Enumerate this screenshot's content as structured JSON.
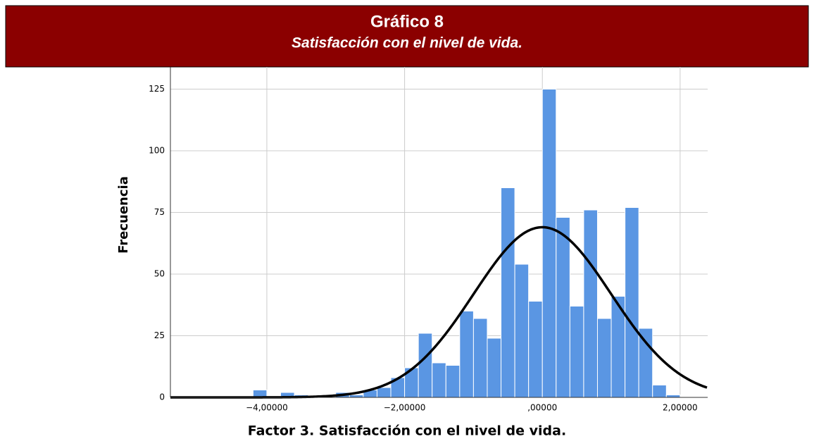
{
  "header": {
    "title": "Gráfico 8",
    "subtitle": "Satisfacción con el nivel de vida."
  },
  "chart_data": {
    "type": "histogram",
    "xlabel": "Factor 3. Satisfacción con el nivel de vida.",
    "ylabel": "Frecuencia",
    "bins": [
      -4.2,
      -4.0,
      -3.8,
      -3.6,
      -3.4,
      -3.2,
      -3.0,
      -2.8,
      -2.6,
      -2.4,
      -2.2,
      -2.0,
      -1.8,
      -1.6,
      -1.4,
      -1.2,
      -1.0,
      -0.8,
      -0.6,
      -0.4,
      -0.2,
      0,
      0.2,
      0.4,
      0.6,
      0.8,
      1.0,
      1.2,
      1.4,
      1.6,
      1.8,
      2.0
    ],
    "values": [
      3,
      0,
      2,
      1,
      0,
      0,
      2,
      1,
      3,
      4,
      8,
      12,
      26,
      14,
      13,
      35,
      32,
      24,
      85,
      54,
      39,
      125,
      73,
      37,
      76,
      32,
      41,
      77,
      28,
      5,
      1
    ],
    "color": "#5a96e3",
    "normal_curve": {
      "mean": 0,
      "sd": 1,
      "peak": 69,
      "color": "#000000"
    },
    "xlim": [
      -5.4,
      2.4
    ],
    "ylim": [
      0,
      134
    ],
    "xticks": [
      {
        "value": -4,
        "label": "−4,00000"
      },
      {
        "value": -2,
        "label": "−2,00000"
      },
      {
        "value": 0,
        "label": ",00000"
      },
      {
        "value": 2,
        "label": "2,00000"
      }
    ],
    "yticks": [
      0,
      25,
      50,
      75,
      100,
      125
    ],
    "grid": true
  }
}
